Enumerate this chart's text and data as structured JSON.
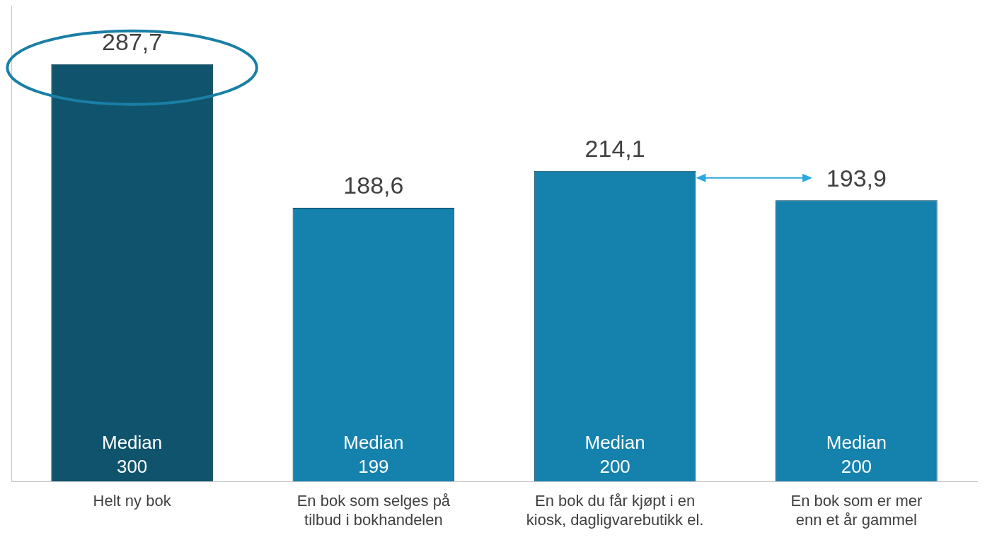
{
  "chart_data": {
    "type": "bar",
    "categories": [
      "Helt ny bok",
      "En bok som selges på tilbud i bokhandelen",
      "En bok du får kjøpt i en kiosk, dagligvarebutikk el.",
      "En bok som er mer enn et år gammel"
    ],
    "values": [
      287.7,
      188.6,
      214.1,
      193.9
    ],
    "colors": [
      "#0f546c",
      "#1581ad",
      "#1581ad",
      "#1581ad"
    ],
    "value_labels": [
      "287,7",
      "188,6",
      "214,1",
      "193,9"
    ],
    "annotations": [
      "Median 300",
      "Median 199",
      "Median 200",
      "Median 200"
    ],
    "grid": false,
    "legend": false
  }
}
